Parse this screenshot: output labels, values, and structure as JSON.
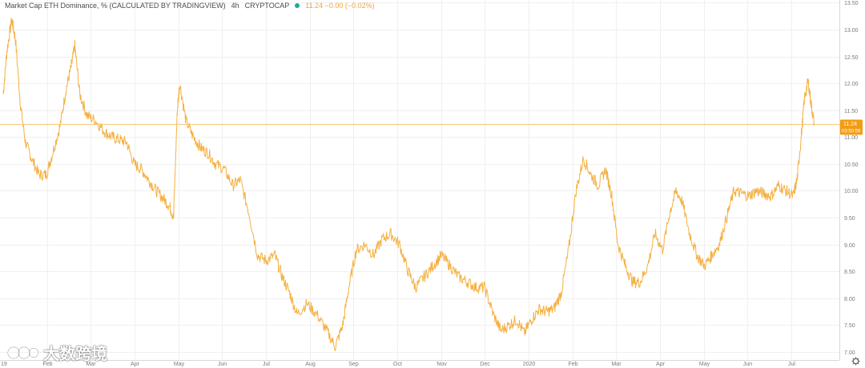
{
  "header": {
    "title": "Market Cap ETH Dominance, % (CALCULATED BY TRADINGVIEW)",
    "interval": "4h",
    "exchange": "CRYPTOCAP",
    "quote": "11.24 −0.00 (−0.02%)"
  },
  "price_label": {
    "value": "11.24",
    "countdown": "03:50:59"
  },
  "watermark": {
    "text": "大数跨境"
  },
  "icons": {
    "status_dot": "status-dot-icon",
    "settings": "gear-icon",
    "logo": "watermark-logo-icon"
  },
  "colors": {
    "series": "#f5b041",
    "price_label_bg": "#f39c12",
    "grid": "#f0f0f0"
  },
  "chart_data": {
    "type": "line",
    "title": "Market Cap ETH Dominance, % (CALCULATED BY TRADINGVIEW)",
    "ylim": [
      6.85,
      13.55
    ],
    "y_ticks": [
      "13.50",
      "13.00",
      "12.50",
      "12.00",
      "11.50",
      "11.00",
      "10.50",
      "10.00",
      "9.50",
      "9.00",
      "8.50",
      "8.00",
      "7.50",
      "7.00"
    ],
    "x_ticks": [
      "19",
      "Feb",
      "Mar",
      "Apr",
      "May",
      "Jun",
      "Jul",
      "Aug",
      "Sep",
      "Oct",
      "Nov",
      "Dec",
      "2020",
      "Feb",
      "Mar",
      "Apr",
      "May",
      "Jun",
      "Jul"
    ],
    "series": [
      {
        "values": [
          [
            0.0,
            11.8
          ],
          [
            0.3,
            12.6
          ],
          [
            0.7,
            13.2
          ],
          [
            1.0,
            12.8
          ],
          [
            1.4,
            11.6
          ],
          [
            1.8,
            10.9
          ],
          [
            2.3,
            10.6
          ],
          [
            2.9,
            10.3
          ],
          [
            3.5,
            10.3
          ],
          [
            4.0,
            10.7
          ],
          [
            4.6,
            11.2
          ],
          [
            5.1,
            11.9
          ],
          [
            5.5,
            12.3
          ],
          [
            5.8,
            12.7
          ],
          [
            6.2,
            11.8
          ],
          [
            6.8,
            11.4
          ],
          [
            7.5,
            11.3
          ],
          [
            8.2,
            11.1
          ],
          [
            8.8,
            11.0
          ],
          [
            9.4,
            10.95
          ],
          [
            10.0,
            10.9
          ],
          [
            10.6,
            10.5
          ],
          [
            11.2,
            10.4
          ],
          [
            11.8,
            10.2
          ],
          [
            12.4,
            10.0
          ],
          [
            13.0,
            9.85
          ],
          [
            13.5,
            9.7
          ],
          [
            13.8,
            9.5
          ],
          [
            14.1,
            11.5
          ],
          [
            14.3,
            12.0
          ],
          [
            14.8,
            11.3
          ],
          [
            15.4,
            11.0
          ],
          [
            16.0,
            10.8
          ],
          [
            16.6,
            10.7
          ],
          [
            17.2,
            10.5
          ],
          [
            17.9,
            10.4
          ],
          [
            18.6,
            10.1
          ],
          [
            19.2,
            10.2
          ],
          [
            19.9,
            9.6
          ],
          [
            20.6,
            8.8
          ],
          [
            21.3,
            8.7
          ],
          [
            22.0,
            8.8
          ],
          [
            22.6,
            8.4
          ],
          [
            23.2,
            8.1
          ],
          [
            23.8,
            7.7
          ],
          [
            24.6,
            7.9
          ],
          [
            25.4,
            7.7
          ],
          [
            26.2,
            7.4
          ],
          [
            26.9,
            7.1
          ],
          [
            27.5,
            7.5
          ],
          [
            28.0,
            8.2
          ],
          [
            28.6,
            8.9
          ],
          [
            29.3,
            9.0
          ],
          [
            30.0,
            8.8
          ],
          [
            30.7,
            9.1
          ],
          [
            31.4,
            9.2
          ],
          [
            32.1,
            9.0
          ],
          [
            32.8,
            8.5
          ],
          [
            33.4,
            8.2
          ],
          [
            34.1,
            8.4
          ],
          [
            34.8,
            8.6
          ],
          [
            35.5,
            8.8
          ],
          [
            36.2,
            8.6
          ],
          [
            36.9,
            8.4
          ],
          [
            37.6,
            8.3
          ],
          [
            38.3,
            8.2
          ],
          [
            39.0,
            8.2
          ],
          [
            39.7,
            7.7
          ],
          [
            40.3,
            7.4
          ],
          [
            41.0,
            7.5
          ],
          [
            41.6,
            7.6
          ],
          [
            42.2,
            7.35
          ],
          [
            42.8,
            7.6
          ],
          [
            43.4,
            7.8
          ],
          [
            44.0,
            7.75
          ],
          [
            44.6,
            7.8
          ],
          [
            45.2,
            8.1
          ],
          [
            45.8,
            8.9
          ],
          [
            46.4,
            10.0
          ],
          [
            47.0,
            10.6
          ],
          [
            47.6,
            10.3
          ],
          [
            48.2,
            10.1
          ],
          [
            48.8,
            10.4
          ],
          [
            49.3,
            9.9
          ],
          [
            49.8,
            9.0
          ],
          [
            50.4,
            8.6
          ],
          [
            51.0,
            8.3
          ],
          [
            51.6,
            8.3
          ],
          [
            52.2,
            8.6
          ],
          [
            52.8,
            9.2
          ],
          [
            53.4,
            8.9
          ],
          [
            54.0,
            9.6
          ],
          [
            54.5,
            10.0
          ],
          [
            55.0,
            9.8
          ],
          [
            55.6,
            9.2
          ],
          [
            56.2,
            8.8
          ],
          [
            56.8,
            8.6
          ],
          [
            57.4,
            8.8
          ],
          [
            58.0,
            9.0
          ],
          [
            58.6,
            9.5
          ],
          [
            59.2,
            10.0
          ],
          [
            59.8,
            9.95
          ],
          [
            60.4,
            9.9
          ],
          [
            61.0,
            10.0
          ],
          [
            61.6,
            9.95
          ],
          [
            62.2,
            9.9
          ],
          [
            62.8,
            10.1
          ],
          [
            63.4,
            10.0
          ],
          [
            64.0,
            9.9
          ],
          [
            64.3,
            10.2
          ],
          [
            64.6,
            10.9
          ],
          [
            64.9,
            11.7
          ],
          [
            65.2,
            12.05
          ],
          [
            65.45,
            11.6
          ],
          [
            65.7,
            11.24
          ]
        ]
      }
    ]
  }
}
